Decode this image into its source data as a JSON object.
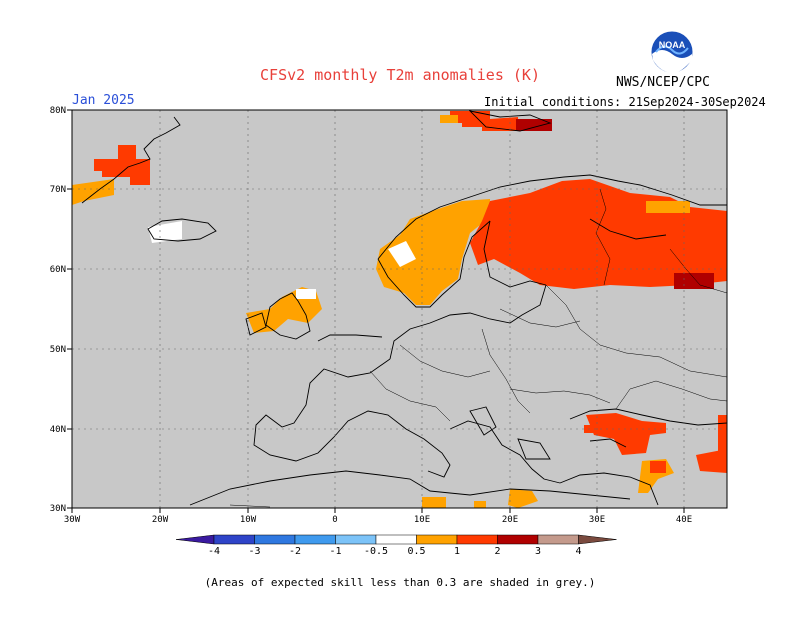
{
  "title": "CFSv2 monthly T2m anomalies (K)",
  "month_label": "Jan 2025",
  "initial_conditions": "Initial conditions: 21Sep2024-30Sep2024",
  "agency": "NWS/NCEP/CPC",
  "logo_text": "NOAA",
  "footnote": "(Areas of expected skill less than 0.3 are shaded in grey.)",
  "map": {
    "lon_range": [
      -30,
      45
    ],
    "lat_range": [
      30,
      80
    ],
    "lat_ticks": [
      "80N",
      "70N",
      "60N",
      "50N",
      "40N",
      "30N"
    ],
    "lon_ticks": [
      "30W",
      "20W",
      "10W",
      "0",
      "10E",
      "20E",
      "30E",
      "40E"
    ],
    "skill_mask_color": "#c8c8c8",
    "grid": true
  },
  "colorbar": {
    "labels": [
      "-4",
      "-3",
      "-2",
      "-1",
      "-0.5",
      "0.5",
      "1",
      "2",
      "3",
      "4"
    ],
    "colors": [
      "#3a1aa0",
      "#2e44c8",
      "#2f78e0",
      "#3f9aee",
      "#7cc3f8",
      "#ffffff",
      "#ffa200",
      "#ff3a00",
      "#b00000",
      "#c49a8c",
      "#7a4a3e"
    ]
  },
  "anomaly_regions": [
    {
      "name": "svalbard",
      "value": 1.5
    },
    {
      "name": "greenland-east",
      "value": 1.5
    },
    {
      "name": "scandinavia",
      "value": 0.8
    },
    {
      "name": "finland-russia",
      "value": 1.5
    },
    {
      "name": "northwest-russia",
      "value": 2.5
    },
    {
      "name": "british-isles",
      "value": 0.8
    },
    {
      "name": "anatolia",
      "value": 1.5
    },
    {
      "name": "middle-east",
      "value": 1.5
    },
    {
      "name": "north-africa",
      "value": 0.8
    }
  ]
}
